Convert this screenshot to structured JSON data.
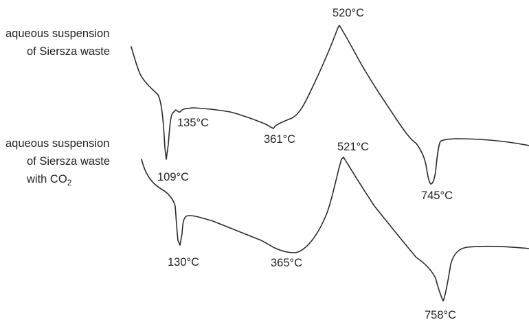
{
  "chart_data": {
    "type": "line",
    "series": [
      {
        "name_lines": [
          "aqueous suspension",
          "of Siersza waste"
        ],
        "peaks": [
          {
            "label": "109°C",
            "kind": "endothermic"
          },
          {
            "label": "135°C",
            "kind": "endothermic"
          },
          {
            "label": "361°C",
            "kind": "endothermic"
          },
          {
            "label": "520°C",
            "kind": "exothermic"
          },
          {
            "label": "745°C",
            "kind": "endothermic"
          }
        ]
      },
      {
        "name_lines": [
          "aqueous suspension",
          "of Siersza waste",
          "with CO"
        ],
        "name_subscript": "2",
        "peaks": [
          {
            "label": "130°C",
            "kind": "endothermic"
          },
          {
            "label": "365°C",
            "kind": "endothermic"
          },
          {
            "label": "521°C",
            "kind": "exothermic"
          },
          {
            "label": "758°C",
            "kind": "endothermic"
          }
        ]
      }
    ]
  }
}
